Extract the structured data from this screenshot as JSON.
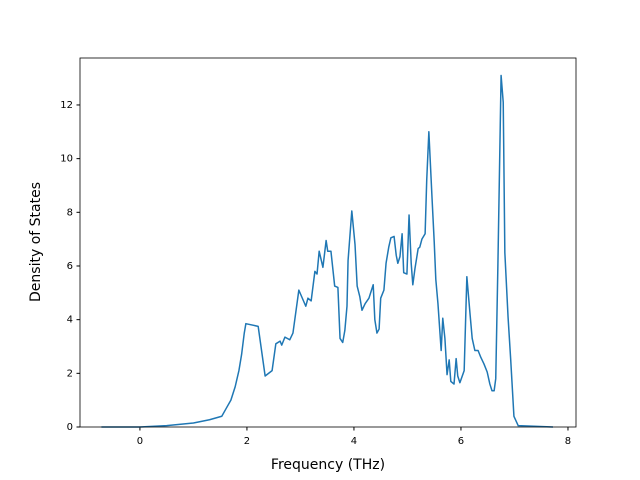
{
  "chart_data": {
    "type": "line",
    "xlabel": "Frequency (THz)",
    "ylabel": "Density of States",
    "color": "#1f77b4",
    "x": [
      -0.72,
      0,
      0.5,
      1.0,
      1.3,
      1.53,
      1.6,
      1.7,
      1.78,
      1.85,
      1.9,
      1.95,
      1.98,
      2.21,
      2.34,
      2.47,
      2.54,
      2.62,
      2.65,
      2.71,
      2.8,
      2.86,
      2.97,
      3.1,
      3.14,
      3.2,
      3.27,
      3.31,
      3.35,
      3.42,
      3.48,
      3.51,
      3.57,
      3.64,
      3.7,
      3.74,
      3.79,
      3.83,
      3.87,
      3.89,
      3.96,
      4.02,
      4.06,
      4.11,
      4.15,
      4.21,
      4.28,
      4.36,
      4.39,
      4.43,
      4.47,
      4.5,
      4.56,
      4.6,
      4.65,
      4.69,
      4.75,
      4.79,
      4.82,
      4.86,
      4.9,
      4.93,
      4.99,
      5.03,
      5.07,
      5.1,
      5.14,
      5.2,
      5.23,
      5.27,
      5.33,
      5.36,
      5.4,
      5.46,
      5.5,
      5.53,
      5.57,
      5.63,
      5.66,
      5.7,
      5.74,
      5.78,
      5.81,
      5.87,
      5.91,
      5.94,
      5.98,
      6.06,
      6.11,
      6.17,
      6.21,
      6.26,
      6.32,
      6.37,
      6.43,
      6.49,
      6.54,
      6.58,
      6.62,
      6.65,
      6.69,
      6.75,
      6.79,
      6.82,
      6.88,
      6.93,
      6.99,
      7.07,
      7.72
    ],
    "values": [
      0,
      0,
      0.05,
      0.15,
      0.27,
      0.4,
      0.65,
      1.0,
      1.5,
      2.1,
      2.7,
      3.5,
      3.85,
      3.75,
      1.9,
      2.1,
      3.1,
      3.2,
      3.05,
      3.35,
      3.25,
      3.5,
      5.1,
      4.5,
      4.8,
      4.7,
      5.8,
      5.7,
      6.55,
      5.95,
      6.95,
      6.55,
      6.55,
      5.25,
      5.2,
      3.3,
      3.15,
      3.6,
      4.5,
      6.2,
      8.05,
      6.8,
      5.25,
      4.85,
      4.35,
      4.6,
      4.8,
      5.3,
      4.0,
      3.5,
      3.65,
      4.8,
      5.1,
      6.1,
      6.7,
      7.05,
      7.1,
      6.4,
      6.1,
      6.35,
      7.2,
      5.75,
      5.7,
      7.9,
      6.1,
      5.3,
      5.9,
      6.65,
      6.7,
      7.0,
      7.2,
      9.2,
      11.0,
      8.5,
      6.9,
      5.5,
      4.6,
      2.85,
      4.05,
      3.3,
      1.95,
      2.5,
      1.7,
      1.6,
      2.55,
      1.9,
      1.65,
      2.1,
      5.6,
      4.2,
      3.3,
      2.85,
      2.85,
      2.6,
      2.35,
      2.05,
      1.6,
      1.35,
      1.35,
      1.8,
      6.0,
      13.1,
      12.1,
      6.5,
      4.1,
      2.5,
      0.4,
      0.05,
      0
    ],
    "xlim": [
      -1.12,
      8.15
    ],
    "xticks": [
      0,
      2,
      4,
      6,
      8
    ],
    "ylim": [
      0,
      13.75
    ],
    "yticks": [
      0,
      2,
      4,
      6,
      8,
      10,
      12
    ],
    "grid": false
  }
}
